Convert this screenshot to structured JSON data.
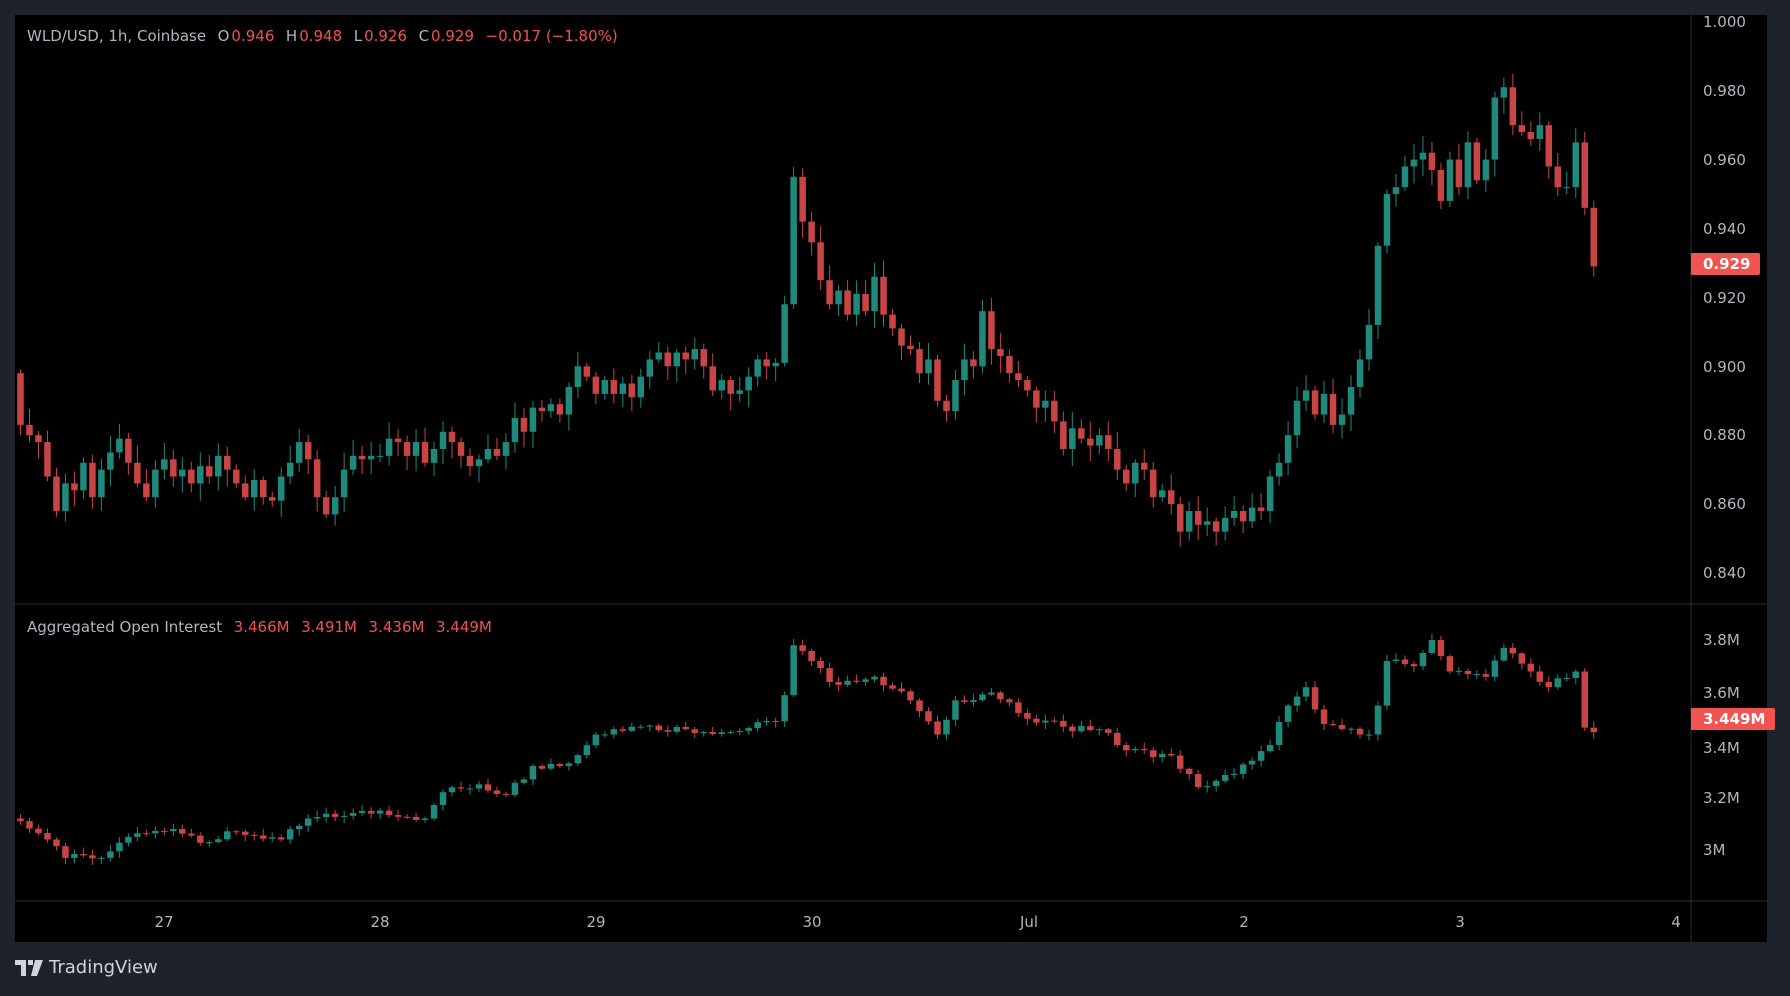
{
  "header": {
    "symbol": "WLD/USD, 1h, Coinbase",
    "o_label": "O",
    "o": "0.946",
    "h_label": "H",
    "h": "0.948",
    "l_label": "L",
    "l": "0.926",
    "c_label": "C",
    "c": "0.929",
    "change": "−0.017 (−1.80%)"
  },
  "oi_header": {
    "title": "Aggregated Open Interest",
    "o": "3.466M",
    "h": "3.491M",
    "l": "3.436M",
    "c": "3.449M"
  },
  "price_axis": [
    "1.000",
    "0.980",
    "0.960",
    "0.940",
    "0.920",
    "0.900",
    "0.880",
    "0.860",
    "0.840"
  ],
  "price_tag": "0.929",
  "oi_axis": [
    "3.8M",
    "3.6M",
    "3.4M",
    "3.2M",
    "3M"
  ],
  "oi_tag": "3.449M",
  "time_axis": [
    "27",
    "28",
    "29",
    "30",
    "Jul",
    "2",
    "3",
    "4"
  ],
  "brand": "TradingView",
  "colors": {
    "up": "#1f8a7c",
    "down": "#c94545",
    "tag": "#f05350"
  },
  "chart_data": [
    {
      "type": "candlestick",
      "title": "WLD/USD, 1h, Coinbase",
      "interval": "1h",
      "first_open": 0.898,
      "ylim": [
        0.832,
        1.002
      ],
      "closes": [
        0.883,
        0.88,
        0.878,
        0.868,
        0.858,
        0.866,
        0.864,
        0.872,
        0.862,
        0.87,
        0.875,
        0.879,
        0.872,
        0.866,
        0.862,
        0.87,
        0.873,
        0.868,
        0.87,
        0.866,
        0.871,
        0.868,
        0.874,
        0.87,
        0.866,
        0.862,
        0.867,
        0.862,
        0.861,
        0.868,
        0.872,
        0.878,
        0.873,
        0.862,
        0.857,
        0.862,
        0.87,
        0.874,
        0.873,
        0.874,
        0.874,
        0.879,
        0.878,
        0.874,
        0.878,
        0.872,
        0.876,
        0.881,
        0.878,
        0.874,
        0.871,
        0.873,
        0.876,
        0.874,
        0.878,
        0.885,
        0.881,
        0.888,
        0.887,
        0.889,
        0.886,
        0.894,
        0.9,
        0.897,
        0.892,
        0.896,
        0.892,
        0.895,
        0.891,
        0.897,
        0.902,
        0.904,
        0.9,
        0.904,
        0.902,
        0.905,
        0.9,
        0.893,
        0.896,
        0.892,
        0.893,
        0.897,
        0.902,
        0.9,
        0.901,
        0.918,
        0.955,
        0.942,
        0.936,
        0.925,
        0.918,
        0.922,
        0.915,
        0.921,
        0.916,
        0.926,
        0.915,
        0.911,
        0.906,
        0.905,
        0.898,
        0.902,
        0.89,
        0.887,
        0.896,
        0.902,
        0.9,
        0.916,
        0.905,
        0.903,
        0.898,
        0.896,
        0.893,
        0.888,
        0.89,
        0.884,
        0.876,
        0.882,
        0.879,
        0.877,
        0.88,
        0.876,
        0.87,
        0.866,
        0.872,
        0.87,
        0.862,
        0.864,
        0.86,
        0.852,
        0.858,
        0.854,
        0.855,
        0.852,
        0.856,
        0.858,
        0.855,
        0.859,
        0.858,
        0.868,
        0.872,
        0.88,
        0.89,
        0.893,
        0.886,
        0.892,
        0.883,
        0.886,
        0.894,
        0.902,
        0.912,
        0.935,
        0.95,
        0.952,
        0.958,
        0.96,
        0.962,
        0.957,
        0.948,
        0.96,
        0.952,
        0.965,
        0.954,
        0.96,
        0.978,
        0.981,
        0.97,
        0.968,
        0.966,
        0.97,
        0.958,
        0.952,
        0.952,
        0.965,
        0.946,
        0.929
      ],
      "last_candle": {
        "o": 0.946,
        "h": 0.948,
        "l": 0.926,
        "c": 0.929
      }
    },
    {
      "type": "candlestick",
      "title": "Aggregated Open Interest",
      "unit": "M",
      "ylim": [
        2.88,
        3.92
      ],
      "close_keypoints": [
        [
          0,
          3.11
        ],
        [
          3,
          3.04
        ],
        [
          5,
          2.97
        ],
        [
          9,
          2.97
        ],
        [
          12,
          3.05
        ],
        [
          17,
          3.08
        ],
        [
          21,
          3.03
        ],
        [
          24,
          3.07
        ],
        [
          29,
          3.04
        ],
        [
          32,
          3.12
        ],
        [
          36,
          3.13
        ],
        [
          40,
          3.15
        ],
        [
          45,
          3.12
        ],
        [
          47,
          3.22
        ],
        [
          51,
          3.25
        ],
        [
          54,
          3.21
        ],
        [
          57,
          3.32
        ],
        [
          61,
          3.33
        ],
        [
          64,
          3.44
        ],
        [
          66,
          3.46
        ],
        [
          69,
          3.47
        ],
        [
          74,
          3.46
        ],
        [
          79,
          3.45
        ],
        [
          84,
          3.49
        ],
        [
          85,
          3.59
        ],
        [
          86,
          3.78
        ],
        [
          88,
          3.72
        ],
        [
          90,
          3.64
        ],
        [
          94,
          3.65
        ],
        [
          95,
          3.66
        ],
        [
          99,
          3.57
        ],
        [
          102,
          3.44
        ],
        [
          104,
          3.57
        ],
        [
          108,
          3.6
        ],
        [
          112,
          3.5
        ],
        [
          116,
          3.47
        ],
        [
          120,
          3.46
        ],
        [
          123,
          3.38
        ],
        [
          128,
          3.36
        ],
        [
          131,
          3.24
        ],
        [
          135,
          3.29
        ],
        [
          137,
          3.34
        ],
        [
          139,
          3.4
        ],
        [
          141,
          3.55
        ],
        [
          143,
          3.62
        ],
        [
          145,
          3.48
        ],
        [
          149,
          3.44
        ],
        [
          150,
          3.44
        ],
        [
          151,
          3.55
        ],
        [
          152,
          3.72
        ],
        [
          155,
          3.7
        ],
        [
          157,
          3.8
        ],
        [
          159,
          3.68
        ],
        [
          163,
          3.66
        ],
        [
          165,
          3.77
        ],
        [
          168,
          3.68
        ],
        [
          170,
          3.62
        ],
        [
          173,
          3.68
        ],
        [
          174,
          3.466
        ],
        [
          175,
          3.449
        ]
      ],
      "candle_count": 176
    }
  ]
}
